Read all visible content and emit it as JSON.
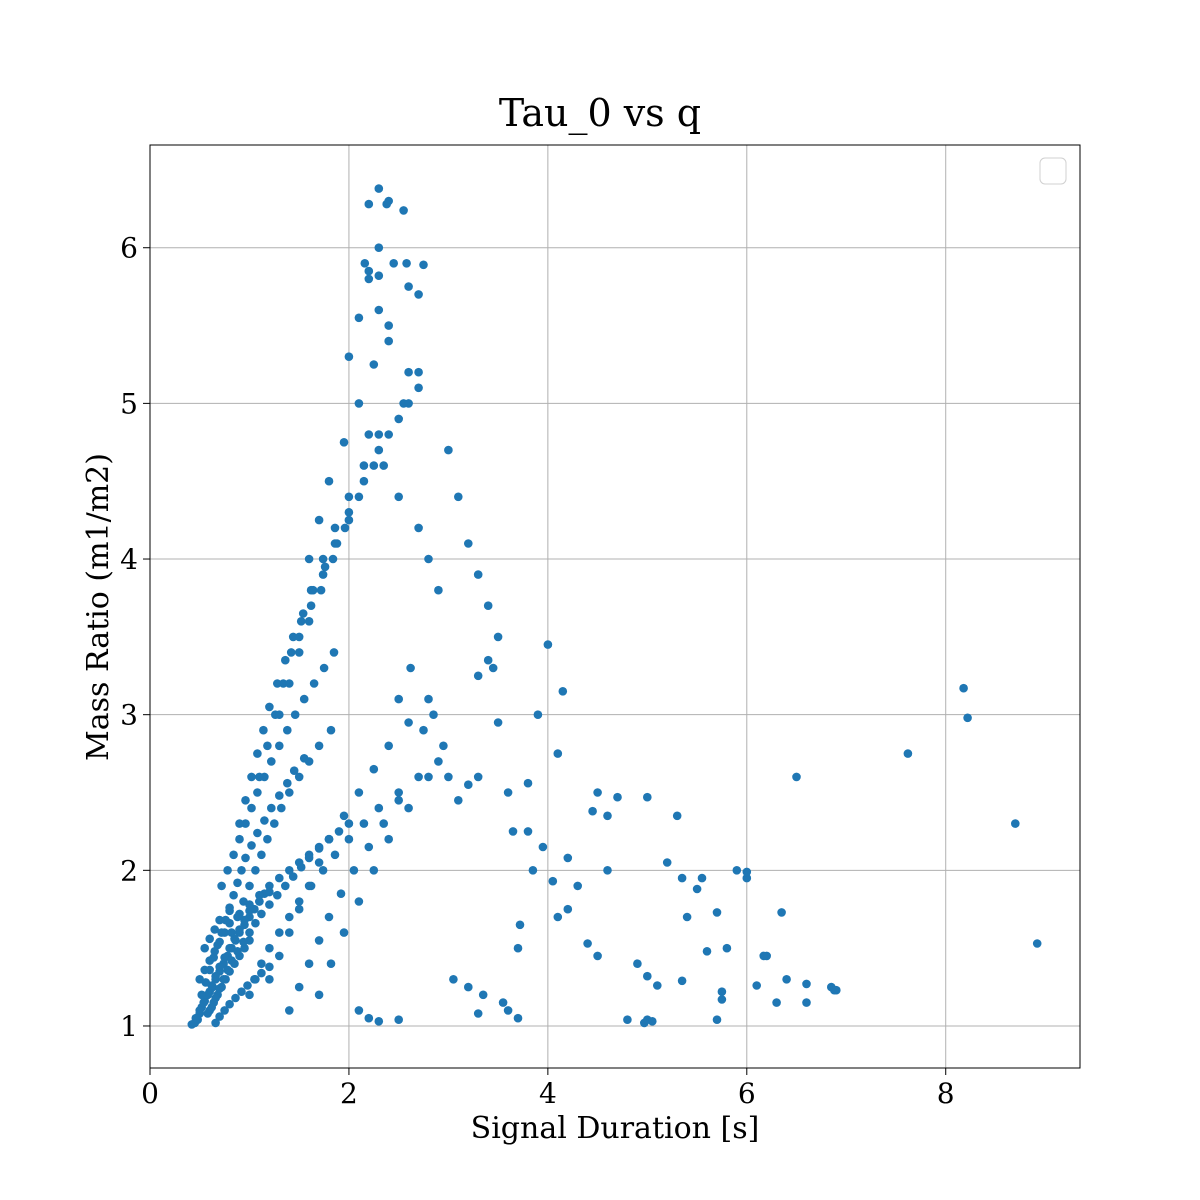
{
  "chart_data": {
    "type": "scatter",
    "title": "Tau_0 vs q",
    "xlabel": "Signal Duration [s]",
    "ylabel": "Mass Ratio (m1/m2)",
    "xlim": [
      0,
      9.35
    ],
    "ylim": [
      0.73,
      6.66
    ],
    "xticks": [
      0,
      2,
      4,
      6,
      8
    ],
    "xtick_labels": [
      "0",
      "2",
      "4",
      "6",
      "8"
    ],
    "yticks": [
      1,
      2,
      3,
      4,
      5,
      6
    ],
    "ytick_labels": [
      "1",
      "2",
      "3",
      "4",
      "5",
      "6"
    ],
    "grid": true,
    "legend": {
      "placement": "top-right",
      "entries": []
    },
    "marker_color": "#1f77b4",
    "series": [
      {
        "x": [
          0.42,
          0.45,
          0.48,
          0.5,
          0.52,
          0.55,
          0.58,
          0.6,
          0.63,
          0.66,
          0.7,
          0.74,
          0.78,
          0.82,
          0.86,
          0.9,
          0.95,
          1.0,
          1.05,
          1.1,
          1.15,
          1.2,
          1.3,
          1.4,
          1.5,
          1.6,
          1.7,
          1.8,
          1.9,
          2.0,
          0.46,
          0.5,
          0.54,
          0.58,
          0.62,
          0.66,
          0.7,
          0.75,
          0.8,
          0.85,
          0.9,
          0.95,
          1.0,
          1.1,
          1.2,
          0.5,
          0.55,
          0.6,
          0.65,
          0.7,
          0.75,
          0.8,
          0.9,
          1.0,
          1.1,
          0.55,
          0.6,
          0.65,
          0.7,
          0.8,
          0.52,
          0.56,
          0.6,
          0.64,
          0.68,
          0.72,
          0.76,
          0.8,
          0.84,
          0.88,
          0.92,
          0.96,
          1.02,
          1.08,
          1.15,
          1.22,
          1.3,
          1.38,
          1.45,
          1.55,
          0.6,
          0.64,
          0.68,
          0.72,
          0.76,
          0.8,
          0.85,
          0.9,
          0.95,
          1.0,
          0.58,
          0.62,
          0.66,
          0.7,
          0.74,
          0.78,
          0.82,
          0.88,
          0.94,
          1.0,
          1.06,
          1.12,
          1.2,
          1.28,
          1.36,
          1.44,
          1.52,
          1.6,
          1.7,
          1.8,
          0.66,
          0.7,
          0.75,
          0.8,
          0.86,
          0.92,
          0.98,
          1.05,
          1.12,
          1.2,
          0.72,
          0.78,
          0.84,
          0.9,
          0.96,
          1.02,
          1.08,
          1.15,
          1.22,
          1.3,
          1.38,
          1.46,
          1.55,
          1.65,
          1.75,
          1.85,
          0.82,
          0.88,
          0.94,
          1.0,
          1.06,
          1.12,
          1.18,
          1.25,
          1.32,
          1.4,
          1.5,
          1.6,
          1.7,
          1.82,
          0.9,
          0.96,
          1.02,
          1.08,
          1.14,
          1.2,
          1.28,
          1.36,
          1.44,
          1.54,
          1.64,
          1.76,
          1.88,
          2.0,
          1.0,
          1.06,
          1.12,
          1.2,
          1.3,
          1.4,
          1.5,
          1.62,
          1.74,
          1.86,
          2.0,
          2.15,
          2.3,
          2.5,
          2.7,
          2.9,
          1.1,
          1.18,
          1.26,
          1.34,
          1.42,
          1.52,
          1.62,
          1.74,
          1.86,
          2.0,
          2.15,
          2.3,
          1.2,
          1.3,
          1.4,
          1.5,
          1.6,
          1.7,
          1.8,
          1.95,
          2.1,
          2.25,
          2.4,
          2.6,
          2.8,
          1.3,
          1.4,
          1.5,
          1.6,
          1.72,
          1.84,
          1.96,
          2.1,
          2.25,
          2.4,
          2.55,
          2.7,
          1.4,
          1.5,
          1.6,
          1.7,
          1.8,
          1.92,
          2.05,
          2.2,
          2.35,
          2.5,
          1.5,
          1.62,
          1.74,
          1.86,
          2.0,
          2.15,
          2.3,
          2.5,
          2.7,
          1.6,
          1.7,
          1.8,
          1.95,
          2.1,
          2.25,
          2.4,
          2.6,
          1.7,
          1.82,
          1.95,
          2.1,
          2.25,
          2.4,
          2.6,
          2.8,
          2.0,
          2.1,
          2.2,
          2.3,
          2.45,
          2.6,
          2.2,
          2.3,
          2.4,
          2.55,
          2.7,
          2.3,
          2.4,
          2.6,
          2.2,
          2.35,
          2.5,
          2.7,
          2.8,
          2.9,
          2.1,
          2.2,
          2.3,
          2.5,
          2.16,
          2.2,
          2.3,
          2.38,
          2.58,
          2.75,
          3.0,
          3.1,
          3.2,
          3.3,
          3.4,
          3.5,
          3.05,
          3.2,
          3.35,
          3.55,
          3.6,
          3.7,
          3.3,
          3.4,
          3.45,
          3.9,
          4.0,
          4.1,
          4.15,
          4.3,
          4.5,
          4.6,
          4.7,
          5.0,
          5.2,
          5.3,
          5.4,
          5.5,
          5.7,
          5.8,
          5.9,
          6.0,
          6.2,
          6.4,
          6.6,
          6.9,
          4.2,
          4.4,
          4.8,
          5.0,
          5.35,
          5.75,
          6.3,
          6.5,
          7.62,
          8.18,
          8.22,
          8.7,
          8.92,
          3.7,
          3.8,
          3.85,
          3.95,
          4.05,
          4.2,
          4.45,
          4.6,
          4.9,
          5.35,
          5.55,
          3.0,
          3.2,
          3.3,
          3.6,
          3.72,
          2.5,
          2.62,
          2.75,
          2.85,
          2.95,
          3.1,
          3.3,
          3.5,
          3.65,
          3.8,
          4.1,
          4.5,
          5.1,
          5.6,
          6.1,
          6.35,
          6.85,
          4.97,
          5.0,
          5.05,
          6.0,
          6.17,
          5.7,
          5.75,
          6.6,
          6.88
        ],
        "y": [
          1.01,
          1.02,
          1.04,
          1.08,
          1.12,
          1.16,
          1.2,
          1.22,
          1.25,
          1.3,
          1.35,
          1.4,
          1.45,
          1.5,
          1.55,
          1.6,
          1.65,
          1.7,
          1.75,
          1.8,
          1.85,
          1.9,
          1.95,
          2.0,
          2.05,
          2.1,
          2.15,
          2.2,
          2.25,
          2.3,
          1.05,
          1.1,
          1.15,
          1.2,
          1.26,
          1.32,
          1.38,
          1.44,
          1.5,
          1.56,
          1.62,
          1.68,
          1.74,
          1.8,
          1.86,
          1.3,
          1.36,
          1.42,
          1.48,
          1.54,
          1.6,
          1.66,
          1.72,
          1.78,
          1.84,
          1.5,
          1.56,
          1.62,
          1.68,
          1.74,
          1.2,
          1.28,
          1.36,
          1.44,
          1.52,
          1.6,
          1.68,
          1.76,
          1.84,
          1.92,
          2.0,
          2.08,
          2.16,
          2.24,
          2.32,
          2.4,
          2.48,
          2.56,
          2.64,
          2.72,
          1.1,
          1.15,
          1.2,
          1.25,
          1.3,
          1.35,
          1.4,
          1.45,
          1.5,
          1.55,
          1.08,
          1.12,
          1.18,
          1.24,
          1.3,
          1.36,
          1.42,
          1.48,
          1.54,
          1.6,
          1.66,
          1.72,
          1.78,
          1.84,
          1.9,
          1.96,
          2.02,
          2.08,
          2.14,
          2.2,
          1.02,
          1.06,
          1.1,
          1.14,
          1.18,
          1.22,
          1.26,
          1.3,
          1.34,
          1.38,
          1.9,
          2.0,
          2.1,
          2.2,
          2.3,
          2.4,
          2.5,
          2.6,
          2.7,
          2.8,
          2.9,
          3.0,
          3.1,
          3.2,
          3.3,
          3.4,
          1.6,
          1.7,
          1.8,
          1.9,
          2.0,
          2.1,
          2.2,
          2.3,
          2.4,
          2.5,
          2.6,
          2.7,
          2.8,
          2.9,
          2.3,
          2.45,
          2.6,
          2.75,
          2.9,
          3.05,
          3.2,
          3.35,
          3.5,
          3.65,
          3.8,
          3.95,
          4.1,
          4.25,
          1.2,
          1.3,
          1.4,
          1.5,
          1.6,
          1.7,
          1.8,
          1.9,
          2.0,
          2.1,
          2.2,
          2.3,
          2.4,
          2.5,
          2.6,
          2.7,
          2.6,
          2.8,
          3.0,
          3.2,
          3.4,
          3.6,
          3.8,
          4.0,
          4.2,
          4.4,
          4.6,
          4.8,
          1.3,
          1.45,
          1.6,
          1.75,
          1.9,
          2.05,
          2.2,
          2.35,
          2.5,
          2.65,
          2.8,
          2.95,
          3.1,
          3.0,
          3.2,
          3.4,
          3.6,
          3.8,
          4.0,
          4.2,
          4.4,
          4.6,
          4.8,
          5.0,
          5.2,
          1.1,
          1.25,
          1.4,
          1.55,
          1.7,
          1.85,
          2.0,
          2.15,
          2.3,
          2.45,
          3.5,
          3.7,
          3.9,
          4.1,
          4.3,
          4.5,
          4.7,
          4.9,
          5.1,
          4.0,
          4.25,
          4.5,
          4.75,
          5.0,
          5.25,
          5.5,
          5.75,
          1.2,
          1.4,
          1.6,
          1.8,
          2.0,
          2.2,
          2.4,
          2.6,
          5.3,
          5.55,
          5.8,
          6.0,
          5.9,
          5.2,
          6.28,
          6.38,
          6.3,
          6.24,
          5.7,
          5.6,
          5.4,
          5.0,
          4.8,
          4.6,
          4.4,
          4.2,
          4.0,
          3.8,
          1.1,
          1.05,
          1.03,
          1.04,
          5.9,
          5.85,
          5.82,
          6.28,
          5.9,
          5.89,
          4.7,
          4.4,
          4.1,
          3.9,
          3.7,
          3.5,
          1.3,
          1.25,
          1.2,
          1.15,
          1.1,
          1.05,
          3.25,
          3.35,
          3.3,
          3.0,
          3.45,
          2.75,
          3.15,
          1.9,
          2.5,
          2.35,
          2.47,
          2.47,
          2.05,
          2.35,
          1.7,
          1.88,
          1.73,
          1.5,
          2.0,
          1.95,
          1.45,
          1.3,
          1.27,
          1.23,
          1.75,
          1.53,
          1.04,
          1.32,
          1.29,
          1.17,
          1.15,
          2.6,
          2.75,
          3.17,
          2.98,
          2.3,
          1.53,
          1.5,
          2.25,
          2.0,
          2.15,
          1.93,
          2.08,
          2.38,
          2.0,
          1.4,
          1.95,
          1.95,
          2.6,
          2.55,
          1.08,
          2.5,
          1.65,
          3.1,
          3.3,
          2.9,
          3.0,
          2.8,
          2.45,
          2.6,
          2.95,
          2.25,
          2.56,
          1.7,
          1.45,
          1.26,
          1.48,
          1.26,
          1.73,
          1.25,
          1.02,
          1.04,
          1.03,
          1.99,
          1.45,
          1.04,
          1.22,
          1.15,
          1.23
        ]
      }
    ]
  }
}
